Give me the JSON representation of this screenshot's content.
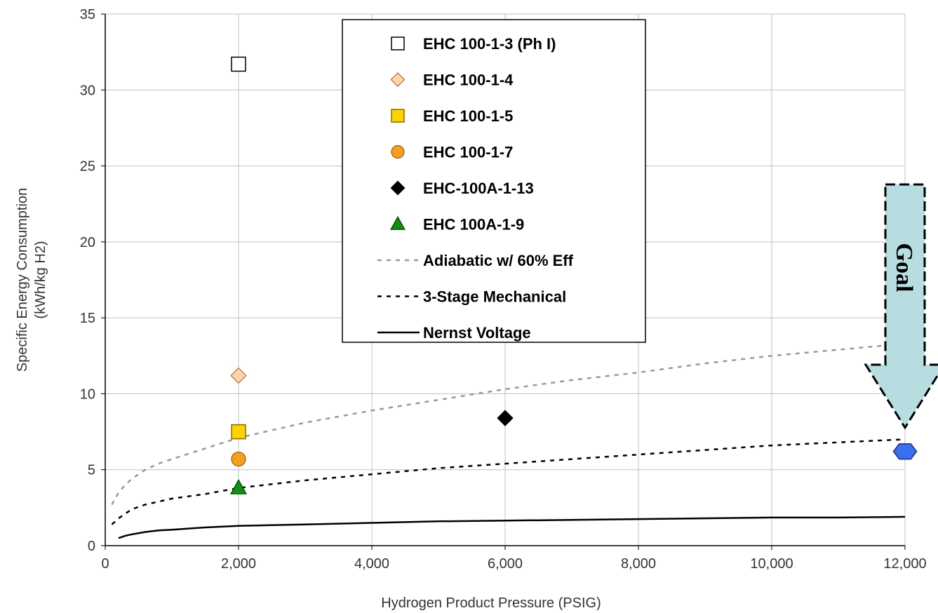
{
  "chart_data": {
    "type": "scatter",
    "title": "",
    "xlabel": "Hydrogen Product Pressure (PSIG)",
    "ylabel": "Specific Energy Consumption (kWh/kg H2)",
    "ylabel_lines": [
      "Specific Energy Consumption",
      "(kWh/kg H2)"
    ],
    "xlim": [
      0,
      12000
    ],
    "ylim": [
      0,
      35
    ],
    "x_ticks": [
      0,
      2000,
      4000,
      6000,
      8000,
      10000,
      12000
    ],
    "x_tick_labels": [
      "0",
      "2,000",
      "4,000",
      "6,000",
      "8,000",
      "10,000",
      "12,000"
    ],
    "y_ticks": [
      0,
      5,
      10,
      15,
      20,
      25,
      30,
      35
    ],
    "y_tick_labels": [
      "0",
      "5",
      "10",
      "15",
      "20",
      "25",
      "30",
      "35"
    ],
    "grid": true,
    "legend_position": "top-center",
    "point_series": [
      {
        "name": "EHC 100-1-3 (Ph I)",
        "marker": "square",
        "fill": "#ffffff",
        "stroke": "#000000",
        "points": [
          [
            2000,
            31.7
          ]
        ]
      },
      {
        "name": "EHC 100-1-4",
        "marker": "diamond",
        "fill": "#fcd5a8",
        "stroke": "#b07040",
        "points": [
          [
            2000,
            11.2
          ]
        ]
      },
      {
        "name": "EHC 100-1-5",
        "marker": "square",
        "fill": "#ffd200",
        "stroke": "#8a6a00",
        "points": [
          [
            2000,
            7.5
          ]
        ]
      },
      {
        "name": "EHC 100-1-7",
        "marker": "circle",
        "fill": "#f5a020",
        "stroke": "#9a5a00",
        "points": [
          [
            2000,
            5.7
          ]
        ]
      },
      {
        "name": "EHC-100A-1-13",
        "marker": "diamond",
        "fill": "#000000",
        "stroke": "#000000",
        "points": [
          [
            6000,
            8.4
          ]
        ]
      },
      {
        "name": "EHC 100A-1-9",
        "marker": "triangle",
        "fill": "#109010",
        "stroke": "#004000",
        "points": [
          [
            2000,
            3.8
          ]
        ]
      }
    ],
    "line_series": [
      {
        "name": "Adiabatic w/ 60% Eff",
        "style": "dashed",
        "color": "#999999",
        "x": [
          100,
          200,
          300,
          400,
          600,
          800,
          1000,
          1500,
          2000,
          3000,
          4000,
          5000,
          6000,
          7000,
          8000,
          9000,
          10000,
          11000,
          12000
        ],
        "y": [
          2.7,
          3.5,
          4.0,
          4.4,
          5.0,
          5.4,
          5.7,
          6.4,
          7.1,
          8.1,
          8.9,
          9.6,
          10.3,
          10.9,
          11.4,
          12.0,
          12.5,
          12.9,
          13.3
        ]
      },
      {
        "name": "3-Stage Mechanical",
        "style": "dashed",
        "color": "#000000",
        "x": [
          100,
          200,
          300,
          400,
          600,
          800,
          1000,
          1500,
          2000,
          3000,
          4000,
          5000,
          6000,
          7000,
          8000,
          9000,
          10000,
          11000,
          12000
        ],
        "y": [
          1.4,
          1.8,
          2.1,
          2.4,
          2.7,
          2.9,
          3.1,
          3.4,
          3.8,
          4.3,
          4.7,
          5.1,
          5.4,
          5.7,
          6.0,
          6.3,
          6.6,
          6.8,
          7.0
        ]
      },
      {
        "name": "Nernst Voltage",
        "style": "solid",
        "color": "#000000",
        "x": [
          200,
          300,
          400,
          600,
          800,
          1000,
          1500,
          2000,
          3000,
          4000,
          5000,
          6000,
          7000,
          8000,
          9000,
          10000,
          11000,
          12000
        ],
        "y": [
          0.5,
          0.65,
          0.75,
          0.9,
          1.0,
          1.05,
          1.2,
          1.3,
          1.4,
          1.5,
          1.6,
          1.65,
          1.7,
          1.75,
          1.8,
          1.85,
          1.85,
          1.9
        ]
      }
    ],
    "goal": {
      "label": "Goal",
      "point": [
        12000,
        6.2
      ],
      "marker": "hexagon",
      "fill": "#3a6ff0",
      "arrow_fill": "#b7dde1"
    }
  }
}
